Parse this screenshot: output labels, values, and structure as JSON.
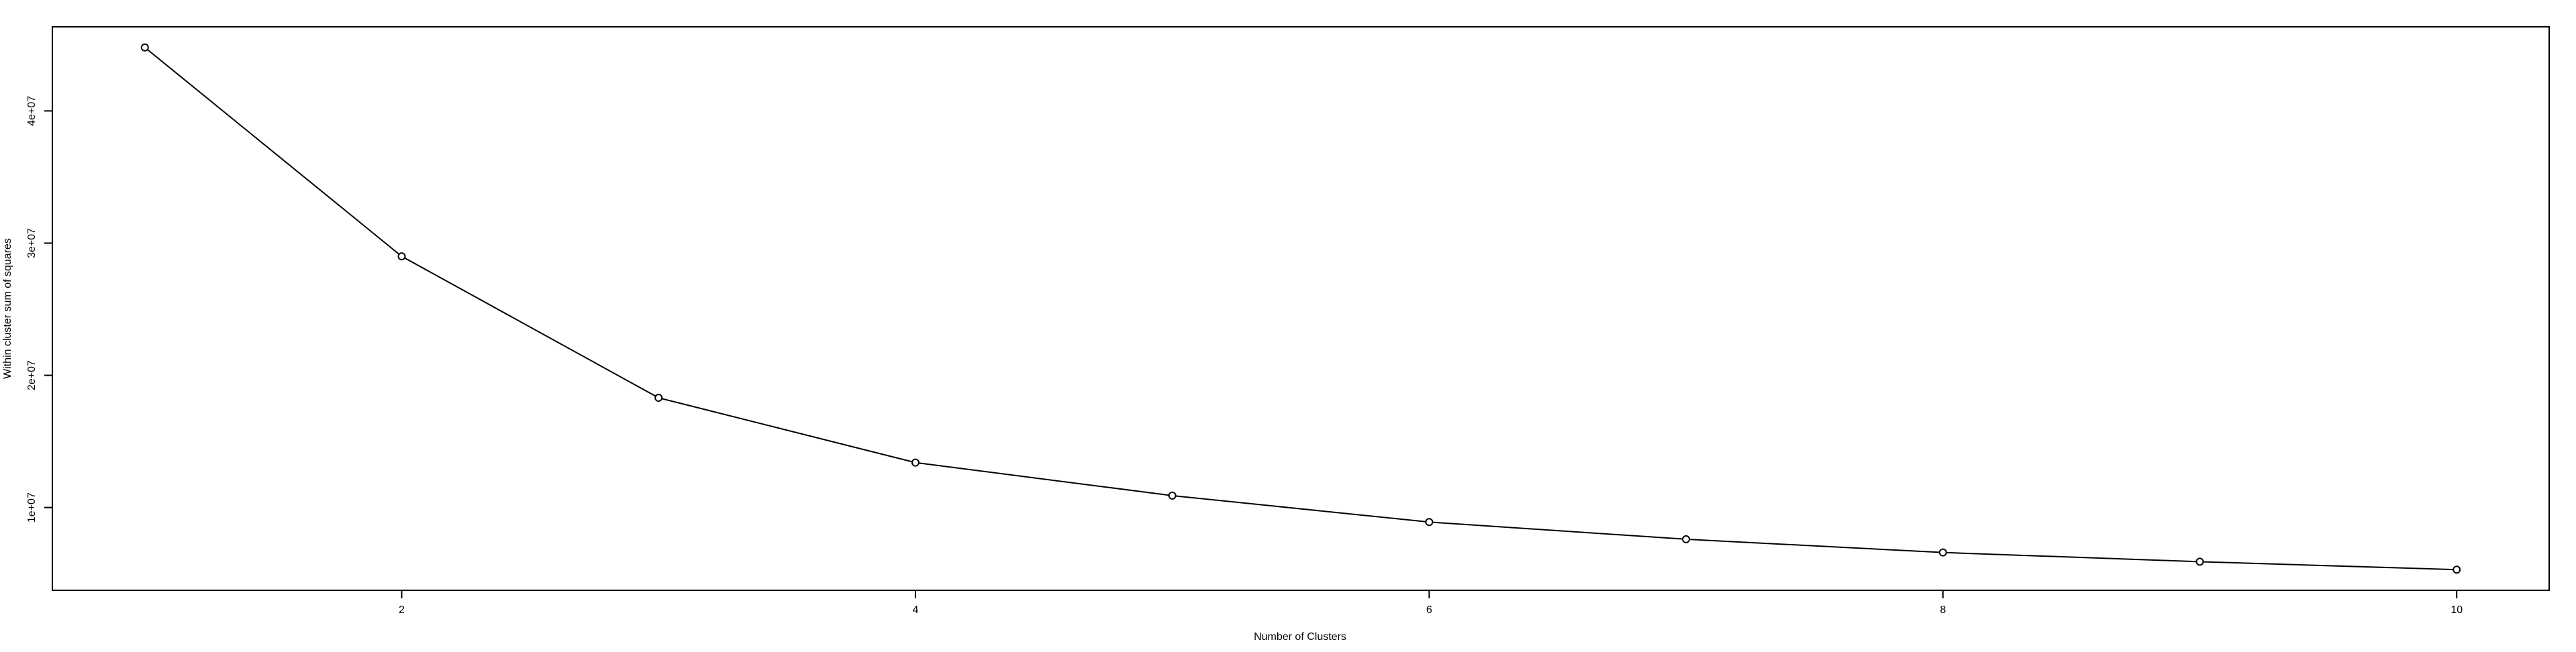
{
  "chart_data": {
    "type": "line",
    "title": "",
    "xlabel": "Number of Clusters",
    "ylabel": "Within cluster sum of squares",
    "x": [
      1,
      2,
      3,
      4,
      5,
      6,
      7,
      8,
      9,
      10
    ],
    "values": [
      44800000,
      29000000,
      18300000,
      13400000,
      10900000,
      8900000,
      7600000,
      6600000,
      5900000,
      5300000
    ],
    "xticks": [
      2,
      4,
      6,
      8,
      10
    ],
    "xtick_labels": [
      "2",
      "4",
      "6",
      "8",
      "10"
    ],
    "yticks": [
      10000000,
      20000000,
      30000000,
      40000000
    ],
    "ytick_labels": [
      "1e+07",
      "2e+07",
      "3e+07",
      "4e+07"
    ],
    "xlim": [
      0.64,
      10.36
    ],
    "ylim": [
      3740000,
      46360000
    ],
    "grid": false,
    "marker": "open-circle",
    "line_color": "#000000"
  }
}
